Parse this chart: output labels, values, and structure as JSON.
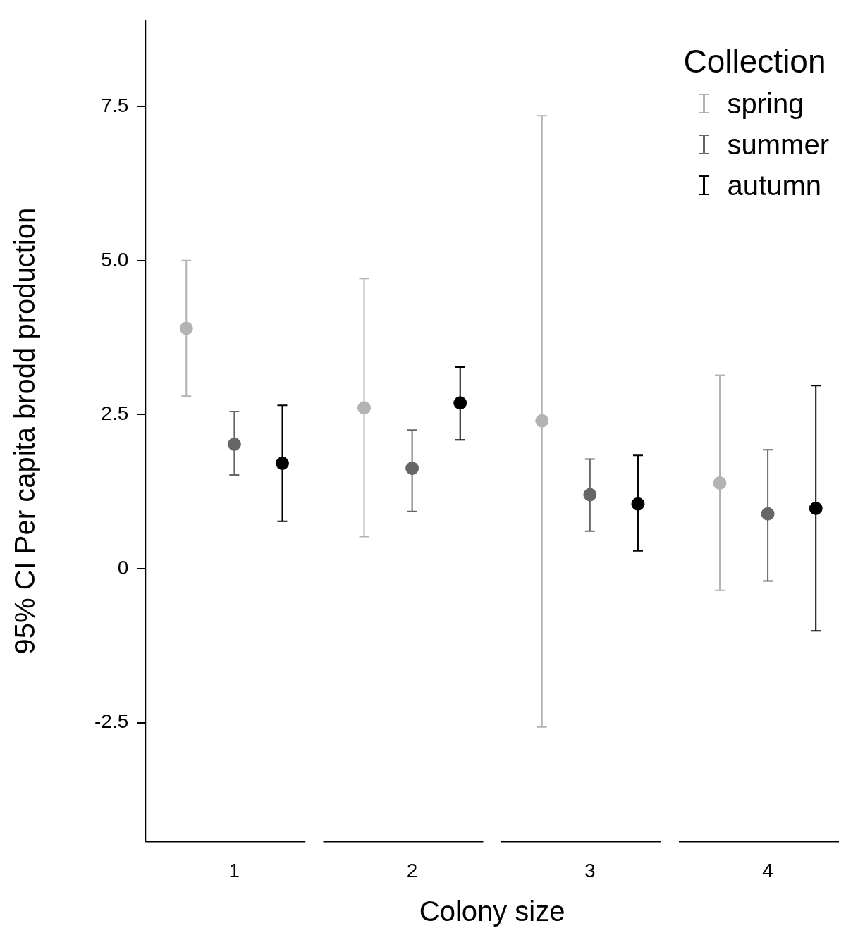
{
  "chart_data": {
    "type": "scatter",
    "xlabel": "Colony size",
    "ylabel": "95% CI Per capita brodd production",
    "legend_title": "Collection",
    "categories": [
      "1",
      "2",
      "3",
      "4"
    ],
    "series": [
      {
        "name": "spring",
        "color": "#b3b3b3",
        "values": [
          3.9,
          2.61,
          2.4,
          1.39
        ],
        "errors": [
          [
            2.8,
            5.0
          ],
          [
            0.52,
            4.71
          ],
          [
            -2.57,
            7.35
          ],
          [
            -0.35,
            3.14
          ]
        ]
      },
      {
        "name": "summer",
        "color": "#666666",
        "values": [
          2.02,
          1.63,
          1.2,
          0.89
        ],
        "errors": [
          [
            1.52,
            2.55
          ],
          [
            0.93,
            2.25
          ],
          [
            0.61,
            1.78
          ],
          [
            -0.2,
            1.93
          ]
        ]
      },
      {
        "name": "autumn",
        "color": "#000000",
        "values": [
          1.71,
          2.69,
          1.05,
          0.98
        ],
        "errors": [
          [
            0.77,
            2.65
          ],
          [
            2.09,
            3.27
          ],
          [
            0.29,
            1.84
          ],
          [
            -1.01,
            2.97
          ]
        ]
      }
    ],
    "ylim": [
      -4.43,
      8.9
    ],
    "yticks": [
      {
        "value": -2.5,
        "label": "-2.5"
      },
      0,
      2.5,
      {
        "value": 5,
        "label": "5.0"
      },
      7.5
    ],
    "grid": false,
    "legend": "top right",
    "marker": "circle"
  }
}
